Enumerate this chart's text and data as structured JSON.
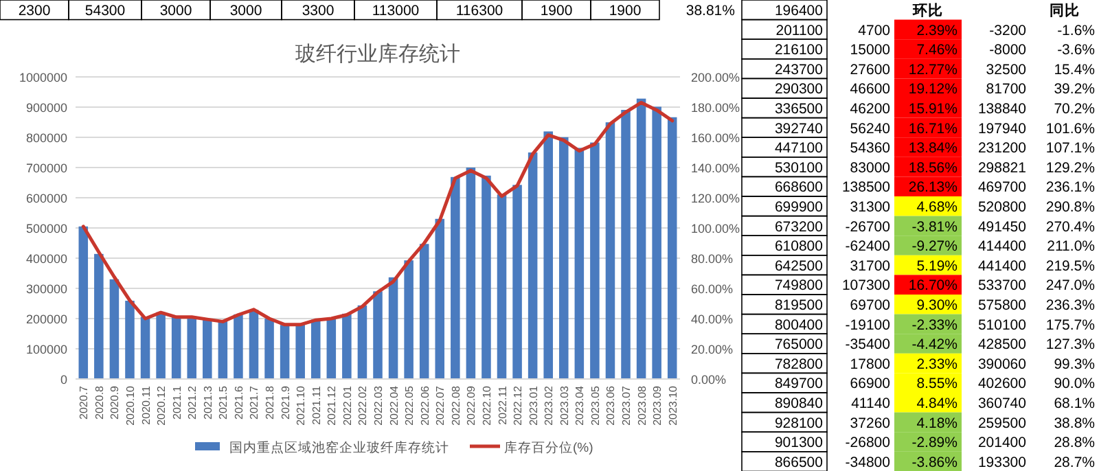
{
  "chart_data": [
    {
      "type": "bar",
      "title": "玻纤行业库存统计",
      "categories": [
        "2020.7",
        "2020.8",
        "2020.9",
        "2020.10",
        "2020.11",
        "2020.12",
        "2021.1",
        "2021.2",
        "2021.3",
        "2021.5",
        "2021.6",
        "2021.7",
        "2021.8",
        "2021.9",
        "2021.10",
        "2021.11",
        "2021.12",
        "2022.01",
        "2022.02",
        "2022.03",
        "2022.04",
        "2022.05",
        "2022.06",
        "2022.07",
        "2022.08",
        "2022.09",
        "2022.10",
        "2022.11",
        "2022.12",
        "2023.01",
        "2023.02",
        "2023.03",
        "2023.04",
        "2023.05",
        "2023.06",
        "2023.07",
        "2023.08",
        "2023.09",
        "2023.10"
      ],
      "series": [
        {
          "name": "国内重点区域池窑企业玻纤库存统计",
          "type": "bar",
          "color": "#4a7bbf",
          "values": [
            505000,
            414000,
            330000,
            259000,
            206000,
            221000,
            206000,
            205000,
            197000,
            191000,
            214000,
            229000,
            200000,
            179000,
            181000,
            196400,
            201100,
            216100,
            243700,
            290300,
            336500,
            392740,
            447100,
            530100,
            668600,
            699900,
            673200,
            610800,
            642500,
            749800,
            819500,
            800400,
            765000,
            782800,
            849700,
            890840,
            928100,
            901300,
            866500
          ]
        },
        {
          "name": "库存百分位(%)",
          "type": "line",
          "axis": "y2",
          "color": "#c8372d",
          "values": [
            101,
            84,
            67.5,
            52,
            40,
            44,
            41,
            41,
            39.5,
            38,
            42.5,
            46,
            40,
            36,
            36,
            39,
            40,
            42.5,
            48,
            57.5,
            64.5,
            78,
            90,
            105,
            133,
            138,
            133,
            121,
            128,
            149,
            161.5,
            158,
            151,
            155.5,
            169,
            176.7,
            183,
            178,
            171
          ]
        }
      ],
      "ylim": [
        0,
        1000000
      ],
      "yticks": [
        0,
        100000,
        200000,
        300000,
        400000,
        500000,
        600000,
        700000,
        800000,
        900000,
        1000000
      ],
      "y2lim": [
        0,
        200
      ],
      "y2ticks": [
        {
          "value": 0,
          "label": "0.00%"
        },
        {
          "value": 20,
          "label": "20.00%"
        },
        {
          "value": 40,
          "label": "40.00%"
        },
        {
          "value": 60,
          "label": "60.00%"
        },
        {
          "value": 80,
          "label": "80.00%"
        },
        {
          "value": 100,
          "label": "100.00%"
        },
        {
          "value": 120,
          "label": "120.00%"
        },
        {
          "value": 140,
          "label": "140.00%"
        },
        {
          "value": 160,
          "label": "160.00%"
        },
        {
          "value": 180,
          "label": "180.00%"
        },
        {
          "value": 200,
          "label": "200.00%"
        }
      ],
      "grid": "y",
      "legend": "bottom",
      "marker": "none",
      "line_style": "solid"
    },
    {
      "type": "other",
      "annotations": [
        "2300",
        "54300",
        "3000",
        "3000",
        "3300",
        "113000",
        "116300",
        "1900",
        "1900",
        "38.81%",
        "196400",
        "环比",
        "同比",
        "201100",
        "4700",
        "2.39%",
        "-3200",
        "-1.6%",
        "216100",
        "15000",
        "7.46%",
        "-8000",
        "-3.6%",
        "243700",
        "27600",
        "12.77%",
        "32500",
        "15.4%",
        "290300",
        "46600",
        "19.12%",
        "81700",
        "39.2%",
        "336500",
        "46200",
        "15.91%",
        "138840",
        "70.2%",
        "392740",
        "56240",
        "16.71%",
        "197940",
        "101.6%",
        "447100",
        "54360",
        "13.84%",
        "231200",
        "107.1%",
        "530100",
        "83000",
        "18.56%",
        "298821",
        "129.2%",
        "668600",
        "138500",
        "26.13%",
        "469700",
        "236.1%",
        "699900",
        "31300",
        "4.68%",
        "520800",
        "290.8%",
        "673200",
        "-26700",
        "-3.81%",
        "491450",
        "270.4%",
        "610800",
        "-62400",
        "-9.27%",
        "414400",
        "211.0%",
        "642500",
        "31700",
        "5.19%",
        "441400",
        "219.5%",
        "749800",
        "107300",
        "16.70%",
        "533700",
        "247.0%",
        "819500",
        "69700",
        "9.30%",
        "575800",
        "236.3%",
        "800400",
        "-19100",
        "-2.33%",
        "510100",
        "175.7%",
        "765000",
        "-35400",
        "-4.42%",
        "428500",
        "127.3%",
        "782800",
        "17800",
        "2.33%",
        "390060",
        "99.3%",
        "849700",
        "66900",
        "8.55%",
        "402600",
        "90.0%",
        "890840",
        "41140",
        "4.84%",
        "360740",
        "68.1%",
        "928100",
        "37260",
        "4.18%",
        "259500",
        "38.8%",
        "901300",
        "-26800",
        "-2.89%",
        "201400",
        "28.8%",
        "866500",
        "-34800",
        "-3.86%",
        "193300",
        "28.7%"
      ],
      "colors": [
        "#ff0000",
        "#ff0000",
        "#ff0000",
        "#ff0000",
        "#ff0000",
        "#ff0000",
        "#ff0000",
        "#ff0000",
        "#ff0000",
        "#ffff00",
        "#92d050",
        "#92d050",
        "#ffff00",
        "#ff0000",
        "#ffff00",
        "#92d050",
        "#92d050",
        "#ffff00",
        "#ffff00",
        "#ffff00",
        "#92d050",
        "#92d050",
        "#92d050"
      ]
    }
  ]
}
